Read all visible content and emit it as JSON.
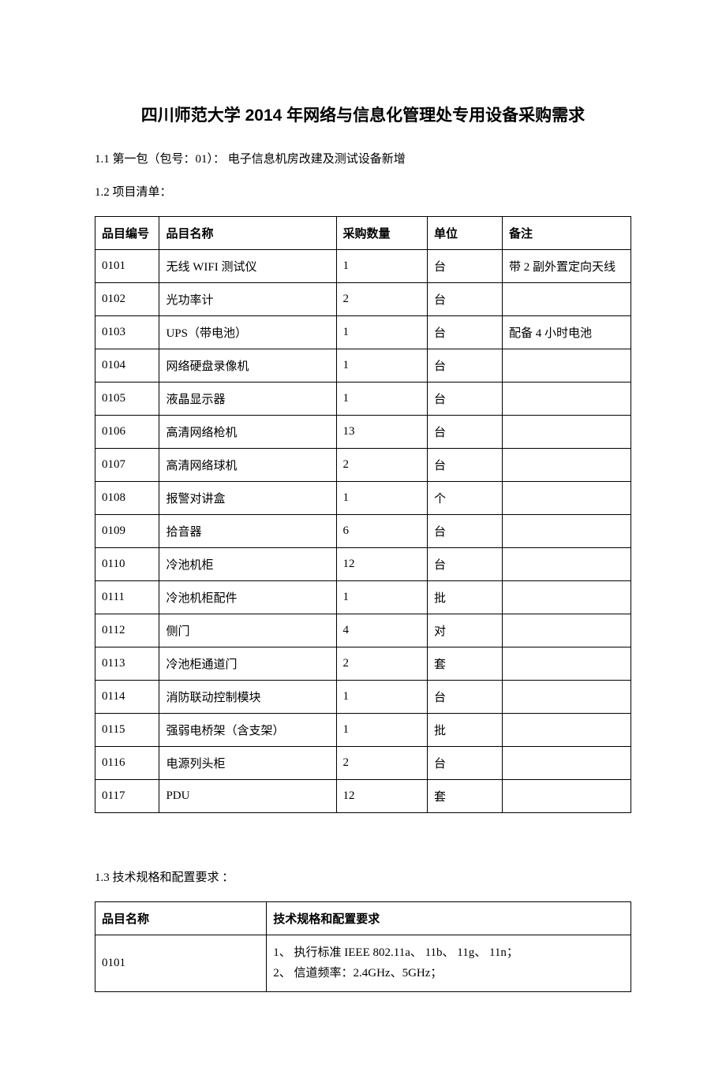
{
  "title": "四川师范大学 2014 年网络与信息化管理处专用设备采购需求",
  "section_1_1": "1.1 第一包（包号：01）： 电子信息机房改建及测试设备新增",
  "section_1_2": "1.2 项目清单：",
  "section_1_3": "1.3 技术规格和配置要求 ：",
  "items_table": {
    "headers": {
      "id": "品目编号",
      "name": "品目名称",
      "qty": "采购数量",
      "unit": "单位",
      "note": "备注"
    },
    "rows": [
      {
        "id": "0101",
        "name": "无线 WIFI 测试仪",
        "qty": "1",
        "unit": "台",
        "note": "带 2 副外置定向天线"
      },
      {
        "id": "0102",
        "name": "光功率计",
        "qty": "2",
        "unit": "台",
        "note": ""
      },
      {
        "id": "0103",
        "name": "UPS（带电池）",
        "qty": "1",
        "unit": "台",
        "note": "配备 4 小时电池"
      },
      {
        "id": "0104",
        "name": "网络硬盘录像机",
        "qty": "1",
        "unit": "台",
        "note": ""
      },
      {
        "id": "0105",
        "name": "液晶显示器",
        "qty": "1",
        "unit": "台",
        "note": ""
      },
      {
        "id": "0106",
        "name": "高清网络枪机",
        "qty": "13",
        "unit": "台",
        "note": ""
      },
      {
        "id": "0107",
        "name": "高清网络球机",
        "qty": "2",
        "unit": "台",
        "note": ""
      },
      {
        "id": "0108",
        "name": "报警对讲盒",
        "qty": "1",
        "unit": "个",
        "note": ""
      },
      {
        "id": "0109",
        "name": "拾音器",
        "qty": "6",
        "unit": "台",
        "note": ""
      },
      {
        "id": "0110",
        "name": "冷池机柜",
        "qty": "12",
        "unit": "台",
        "note": ""
      },
      {
        "id": "0111",
        "name": "冷池机柜配件",
        "qty": "1",
        "unit": "批",
        "note": ""
      },
      {
        "id": "0112",
        "name": "侧门",
        "qty": "4",
        "unit": "对",
        "note": ""
      },
      {
        "id": "0113",
        "name": "冷池柜通道门",
        "qty": "2",
        "unit": "套",
        "note": ""
      },
      {
        "id": "0114",
        "name": "消防联动控制模块",
        "qty": "1",
        "unit": "台",
        "note": ""
      },
      {
        "id": "0115",
        "name": "强弱电桥架（含支架）",
        "qty": "1",
        "unit": "批",
        "note": ""
      },
      {
        "id": "0116",
        "name": "电源列头柜",
        "qty": "2",
        "unit": "台",
        "note": ""
      },
      {
        "id": "0117",
        "name": "PDU",
        "qty": "12",
        "unit": "套",
        "note": ""
      }
    ]
  },
  "spec_table": {
    "headers": {
      "name": "品目名称",
      "req": "技术规格和配置要求"
    },
    "rows": [
      {
        "name": "0101",
        "req_line1": "1、 执行标准 IEEE 802.11a、 11b、 11g、 11n；",
        "req_line2": "2、 信道频率：2.4GHz、5GHz；"
      }
    ]
  }
}
